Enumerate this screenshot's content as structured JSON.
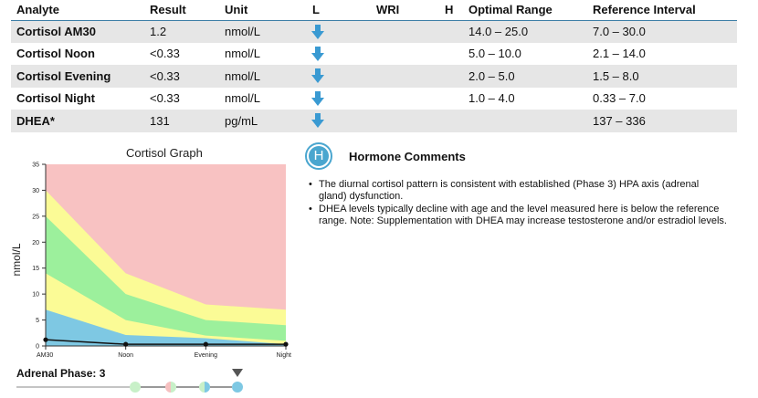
{
  "table": {
    "headers": {
      "analyte": "Analyte",
      "result": "Result",
      "unit": "Unit",
      "l": "L",
      "wri": "WRI",
      "h": "H",
      "optimal": "Optimal Range",
      "reference": "Reference Interval"
    },
    "rows": [
      {
        "analyte": "Cortisol AM30",
        "result": "1.2",
        "unit": "nmol/L",
        "flag": "low-arrow-icon",
        "optimal": "14.0 – 25.0",
        "reference": "7.0 – 30.0"
      },
      {
        "analyte": "Cortisol Noon",
        "result": "<0.33",
        "unit": "nmol/L",
        "flag": "low-arrow-icon",
        "optimal": "5.0 – 10.0",
        "reference": "2.1 – 14.0"
      },
      {
        "analyte": "Cortisol Evening",
        "result": "<0.33",
        "unit": "nmol/L",
        "flag": "low-arrow-icon",
        "optimal": "2.0 – 5.0",
        "reference": "1.5 – 8.0"
      },
      {
        "analyte": "Cortisol Night",
        "result": "<0.33",
        "unit": "nmol/L",
        "flag": "low-arrow-icon",
        "optimal": "1.0 – 4.0",
        "reference": "0.33 – 7.0"
      },
      {
        "analyte": "DHEA*",
        "result": "131",
        "unit": "pg/mL",
        "flag": "low-arrow-icon",
        "optimal": "",
        "reference": "137 – 336"
      }
    ],
    "flag_color": "#3a9ad2",
    "header_rule_color": "#3d7ea6",
    "shade_color": "#e6e6e6"
  },
  "chart_data": {
    "type": "area",
    "title": "Cortisol Graph",
    "ylabel": "nmol/L",
    "xlabel": "",
    "categories": [
      "AM30",
      "Noon",
      "Evening",
      "Night"
    ],
    "ylim": [
      0,
      35
    ],
    "yticks": [
      0,
      5,
      10,
      15,
      20,
      25,
      30,
      35
    ],
    "bands": [
      {
        "color": "#f8c2c2",
        "upper": [
          35,
          35,
          35,
          35
        ]
      },
      {
        "color": "#fbfb96",
        "upper": [
          30,
          14,
          8,
          7
        ]
      },
      {
        "color": "#9cf09c",
        "upper": [
          25,
          10,
          5,
          4
        ]
      },
      {
        "color": "#fbfb96",
        "upper": [
          14,
          5,
          2,
          1
        ]
      },
      {
        "color": "#7ec8e3",
        "upper": [
          7,
          2.1,
          1.5,
          0.33
        ]
      }
    ],
    "series": [
      {
        "values": [
          1.2,
          0.33,
          0.33,
          0.33
        ],
        "color": "#111111"
      }
    ],
    "grid": false,
    "legend": "none"
  },
  "adrenal_phase": {
    "label": "Adrenal Phase:",
    "value": "3",
    "selected_index": 3,
    "stages": [
      {
        "left": "#c8f0c8",
        "right": "#c8f0c8"
      },
      {
        "left": "#f6c0c0",
        "right": "#c8f0c8"
      },
      {
        "left": "#c8f0c8",
        "right": "#7ec8e3"
      },
      {
        "left": "#7ec8e3",
        "right": "#7ec8e3"
      }
    ]
  },
  "comments": {
    "badge_letter": "H",
    "title": "Hormone Comments",
    "items": [
      "The diurnal cortisol pattern is consistent with established (Phase 3) HPA axis (adrenal gland) dysfunction.",
      "DHEA levels typically decline with age and the level measured here is below the reference range. Note: Supplementation with DHEA may increase testosterone and/or estradiol levels."
    ]
  }
}
